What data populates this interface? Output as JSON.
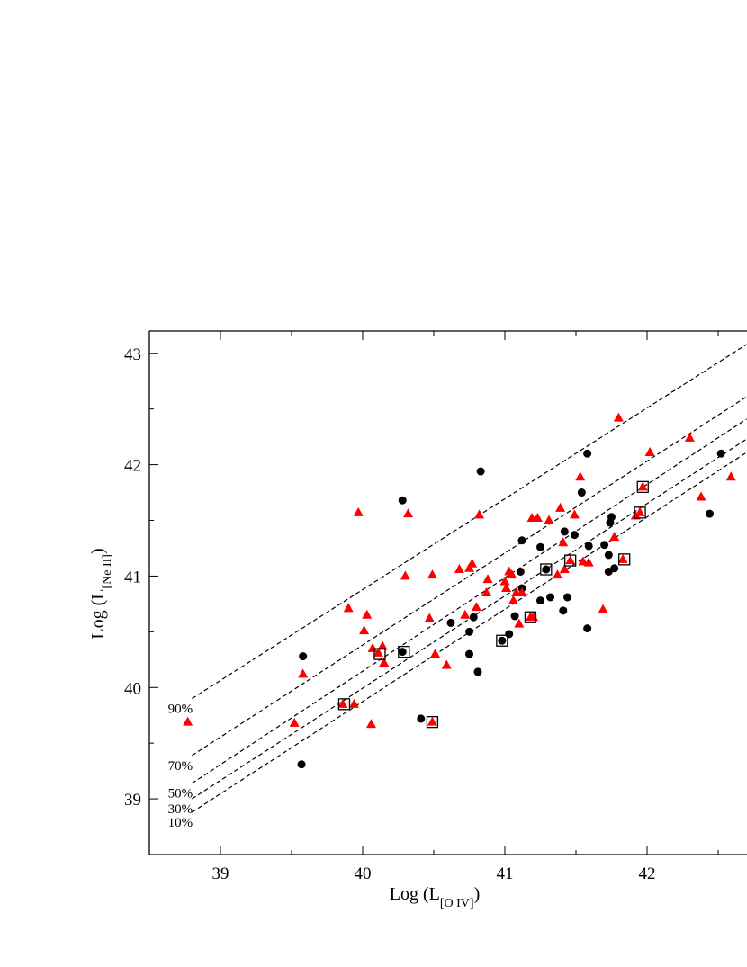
{
  "chart_data": {
    "type": "scatter",
    "xlabel": [
      "Log (L",
      "[O IV]",
      ")"
    ],
    "ylabel": [
      "Log (L",
      "[Ne II]",
      ")"
    ],
    "xlim": [
      38.5,
      42.7
    ],
    "ylim": [
      38.5,
      43.2
    ],
    "xticks": [
      39,
      40,
      41,
      42
    ],
    "yticks": [
      39,
      40,
      41,
      42,
      43
    ],
    "xminor": [
      39.5,
      40.5,
      41.5,
      42.5
    ],
    "yminor": [
      38.5,
      39.5,
      40.5,
      41.5,
      42.5
    ],
    "lines": [
      {
        "name": "90%",
        "x": [
          38.8,
          42.7
        ],
        "y": [
          39.9,
          43.08
        ]
      },
      {
        "name": "70%",
        "x": [
          38.8,
          42.7
        ],
        "y": [
          39.39,
          42.61
        ]
      },
      {
        "name": "50%",
        "x": [
          38.8,
          42.7
        ],
        "y": [
          39.14,
          42.41
        ]
      },
      {
        "name": "30%",
        "x": [
          38.8,
          42.7
        ],
        "y": [
          39.0,
          42.23
        ]
      },
      {
        "name": "10%",
        "x": [
          38.8,
          42.7
        ],
        "y": [
          38.88,
          42.11
        ]
      }
    ],
    "series": [
      {
        "marker": "circle",
        "color": "#000000",
        "x": [
          39.58,
          39.57,
          40.28,
          40.28,
          40.41,
          40.83,
          40.62,
          40.75,
          40.75,
          40.78,
          40.81,
          40.98,
          41.03,
          41.07,
          41.11,
          41.12,
          41.12,
          41.25,
          41.29,
          41.25,
          41.32,
          41.42,
          41.41,
          41.44,
          41.49,
          41.54,
          41.58,
          41.58,
          41.59,
          41.7,
          41.73,
          41.74,
          41.75,
          41.73,
          41.77,
          42.44,
          42.52
        ],
        "y": [
          40.28,
          39.31,
          41.68,
          40.32,
          39.72,
          41.94,
          40.58,
          40.3,
          40.5,
          40.63,
          40.14,
          40.42,
          40.48,
          40.64,
          41.04,
          40.89,
          41.32,
          40.78,
          41.06,
          41.26,
          40.81,
          41.4,
          40.69,
          40.81,
          41.37,
          41.75,
          42.1,
          40.53,
          41.27,
          41.28,
          41.19,
          41.48,
          41.53,
          41.04,
          41.07,
          41.56,
          42.1
        ]
      },
      {
        "marker": "triangle",
        "color": "#ff0000",
        "x": [
          38.77,
          39.52,
          39.58,
          39.86,
          39.94,
          39.9,
          39.97,
          40.01,
          40.03,
          40.06,
          40.07,
          40.11,
          40.14,
          40.15,
          40.3,
          40.32,
          40.47,
          40.49,
          40.49,
          40.51,
          40.59,
          40.68,
          40.72,
          40.75,
          40.77,
          40.8,
          40.82,
          40.87,
          40.88,
          41.0,
          41.01,
          41.03,
          41.05,
          41.06,
          41.08,
          41.1,
          41.12,
          41.18,
          41.2,
          41.19,
          41.23,
          41.31,
          41.37,
          41.39,
          41.41,
          41.42,
          41.46,
          41.49,
          41.53,
          41.55,
          41.59,
          41.69,
          41.77,
          41.8,
          41.83,
          41.92,
          41.95,
          41.97,
          42.02,
          42.3,
          42.38,
          42.59
        ],
        "y": [
          39.69,
          39.68,
          40.12,
          39.85,
          39.85,
          40.71,
          41.57,
          40.51,
          40.65,
          39.67,
          40.35,
          40.31,
          40.37,
          40.22,
          41.0,
          41.56,
          40.62,
          41.01,
          39.69,
          40.3,
          40.2,
          41.06,
          40.65,
          41.07,
          41.11,
          40.72,
          41.55,
          40.85,
          40.97,
          40.95,
          40.89,
          41.04,
          41.01,
          40.78,
          40.85,
          40.57,
          40.85,
          40.63,
          40.63,
          41.52,
          41.52,
          41.5,
          41.01,
          41.61,
          41.3,
          41.06,
          41.14,
          41.55,
          41.89,
          41.13,
          41.12,
          40.7,
          41.35,
          42.42,
          41.15,
          41.54,
          41.57,
          41.8,
          42.11,
          42.24,
          41.71,
          41.89
        ]
      },
      {
        "marker": "square",
        "color": "#000000",
        "x": [
          39.87,
          40.12,
          40.29,
          40.49,
          40.98,
          41.18,
          41.29,
          41.46,
          41.84,
          41.95,
          41.97
        ],
        "y": [
          39.85,
          40.3,
          40.32,
          39.69,
          40.42,
          40.63,
          41.06,
          41.14,
          41.15,
          41.57,
          41.8
        ]
      }
    ]
  }
}
